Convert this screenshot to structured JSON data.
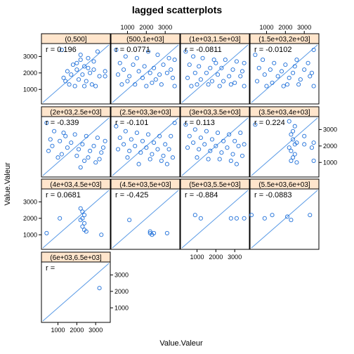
{
  "chart_data": {
    "type": "scatter",
    "title": "lagged scatterplots",
    "xlabel": "Value.Valeur",
    "ylabel": "Value.Valeur",
    "xlim": [
      200,
      3700
    ],
    "ylim": [
      200,
      3700
    ],
    "x_ticks": [
      1000,
      2000,
      3000
    ],
    "y_ticks": [
      1000,
      2000,
      3000
    ],
    "tick_labels": [
      "1000",
      "2000",
      "3000"
    ],
    "reference_line": "y = x",
    "colors": {
      "points": "#1e6fd9",
      "line": "#5b9be6",
      "strip": "#ffe5cc",
      "frame": "#000000"
    },
    "panels": [
      {
        "strip": "(0,500]",
        "r_label": "r = 0.196",
        "points": [
          [
            1200,
            3400
          ],
          [
            2200,
            3100
          ],
          [
            2600,
            2900
          ],
          [
            3100,
            3300
          ],
          [
            2900,
            2700
          ],
          [
            2400,
            2400
          ],
          [
            2000,
            2200
          ],
          [
            1500,
            2100
          ],
          [
            1800,
            2500
          ],
          [
            2300,
            1900
          ],
          [
            2700,
            2000
          ],
          [
            3200,
            1800
          ],
          [
            1300,
            1700
          ],
          [
            2100,
            1600
          ],
          [
            2500,
            1500
          ],
          [
            2800,
            1300
          ],
          [
            1600,
            1300
          ],
          [
            1900,
            1200
          ],
          [
            2400,
            1200
          ],
          [
            3000,
            1200
          ],
          [
            1400,
            1500
          ],
          [
            2000,
            2600
          ],
          [
            2900,
            2200
          ],
          [
            3500,
            2100
          ],
          [
            3500,
            1800
          ],
          [
            2200,
            2800
          ],
          [
            1700,
            1900
          ],
          [
            2600,
            2300
          ]
        ]
      },
      {
        "strip": "(500,1e+03]",
        "r_label": "r = 0.0771",
        "points": [
          [
            400,
            3400
          ],
          [
            900,
            3000
          ],
          [
            1500,
            2900
          ],
          [
            2100,
            3300
          ],
          [
            2600,
            3100
          ],
          [
            3200,
            2900
          ],
          [
            3500,
            2800
          ],
          [
            600,
            2600
          ],
          [
            1300,
            2500
          ],
          [
            1900,
            2400
          ],
          [
            2400,
            2300
          ],
          [
            2900,
            2500
          ],
          [
            3300,
            2200
          ],
          [
            800,
            2200
          ],
          [
            1600,
            2100
          ],
          [
            2200,
            2000
          ],
          [
            2700,
            1900
          ],
          [
            3100,
            2000
          ],
          [
            500,
            1900
          ],
          [
            1100,
            1800
          ],
          [
            1800,
            1700
          ],
          [
            2500,
            1600
          ],
          [
            3400,
            1700
          ],
          [
            700,
            1300
          ],
          [
            1400,
            1300
          ],
          [
            2000,
            1200
          ],
          [
            2800,
            1300
          ],
          [
            3500,
            1200
          ],
          [
            1000,
            1500
          ],
          [
            2300,
            1400
          ]
        ]
      },
      {
        "strip": "(1e+03,1.5e+03]",
        "r_label": "r = -0.0811",
        "points": [
          [
            400,
            3300
          ],
          [
            800,
            3000
          ],
          [
            1300,
            2900
          ],
          [
            1900,
            2800
          ],
          [
            2500,
            2800
          ],
          [
            3100,
            2700
          ],
          [
            3500,
            2600
          ],
          [
            600,
            2500
          ],
          [
            1100,
            2400
          ],
          [
            1700,
            2300
          ],
          [
            2300,
            2300
          ],
          [
            2900,
            2200
          ],
          [
            3400,
            2100
          ],
          [
            900,
            2000
          ],
          [
            1500,
            2000
          ],
          [
            2100,
            1900
          ],
          [
            2700,
            1800
          ],
          [
            3300,
            1800
          ],
          [
            500,
            1700
          ],
          [
            1200,
            1600
          ],
          [
            1800,
            1500
          ],
          [
            2400,
            1500
          ],
          [
            3000,
            1400
          ],
          [
            1000,
            1300
          ],
          [
            1600,
            1300
          ],
          [
            2200,
            1200
          ],
          [
            2800,
            1300
          ],
          [
            3500,
            1200
          ],
          [
            700,
            1200
          ],
          [
            2000,
            2600
          ]
        ]
      },
      {
        "strip": "(1.5e+03,2e+03]",
        "r_label": "r = -0.0102",
        "points": [
          [
            400,
            3100
          ],
          [
            800,
            2800
          ],
          [
            1400,
            2600
          ],
          [
            2000,
            2500
          ],
          [
            2600,
            2800
          ],
          [
            3200,
            2600
          ],
          [
            3500,
            3400
          ],
          [
            600,
            2300
          ],
          [
            1200,
            2200
          ],
          [
            1800,
            2100
          ],
          [
            2400,
            2000
          ],
          [
            3000,
            2200
          ],
          [
            3400,
            2000
          ],
          [
            900,
            1900
          ],
          [
            1600,
            1800
          ],
          [
            2200,
            1700
          ],
          [
            2800,
            1600
          ],
          [
            3300,
            1800
          ],
          [
            500,
            1500
          ],
          [
            1300,
            1400
          ],
          [
            2100,
            1300
          ],
          [
            2700,
            1300
          ],
          [
            3500,
            1200
          ],
          [
            1000,
            1200
          ],
          [
            1900,
            1200
          ],
          [
            2500,
            2400
          ]
        ]
      },
      {
        "strip": "(2e+03,2.5e+03]",
        "r_label": "r = -0.339",
        "points": [
          [
            400,
            3400
          ],
          [
            800,
            2900
          ],
          [
            1300,
            2800
          ],
          [
            1900,
            2700
          ],
          [
            2500,
            2600
          ],
          [
            3100,
            2500
          ],
          [
            3500,
            2300
          ],
          [
            600,
            2400
          ],
          [
            1100,
            2300
          ],
          [
            1700,
            2200
          ],
          [
            2300,
            2100
          ],
          [
            2900,
            2000
          ],
          [
            3400,
            1900
          ],
          [
            700,
            2000
          ],
          [
            1500,
            1900
          ],
          [
            2100,
            1800
          ],
          [
            2700,
            1700
          ],
          [
            3300,
            1600
          ],
          [
            500,
            1700
          ],
          [
            1200,
            1500
          ],
          [
            2000,
            1400
          ],
          [
            2600,
            1300
          ],
          [
            3200,
            1200
          ],
          [
            1000,
            1300
          ],
          [
            2400,
            1100
          ],
          [
            3000,
            1000
          ],
          [
            2200,
            700
          ],
          [
            1400,
            2600
          ]
        ]
      },
      {
        "strip": "(2.5e+03,3e+03]",
        "r_label": "r = -0.101",
        "points": [
          [
            400,
            3200
          ],
          [
            900,
            2900
          ],
          [
            1500,
            2800
          ],
          [
            2100,
            2700
          ],
          [
            2700,
            2600
          ],
          [
            3300,
            2600
          ],
          [
            3500,
            3400
          ],
          [
            600,
            2500
          ],
          [
            1200,
            2400
          ],
          [
            1800,
            2300
          ],
          [
            2400,
            2200
          ],
          [
            3000,
            2100
          ],
          [
            800,
            2100
          ],
          [
            1400,
            2000
          ],
          [
            2000,
            1900
          ],
          [
            2600,
            1800
          ],
          [
            3200,
            1800
          ],
          [
            500,
            1800
          ],
          [
            1100,
            1700
          ],
          [
            1700,
            1600
          ],
          [
            2300,
            1500
          ],
          [
            2900,
            1400
          ],
          [
            3400,
            1300
          ],
          [
            1000,
            1300
          ],
          [
            2200,
            1200
          ],
          [
            2800,
            1100
          ],
          [
            1600,
            900
          ],
          [
            3100,
            900
          ]
        ]
      },
      {
        "strip": "(3e+03,3.5e+03]",
        "r_label": "r = 0.113",
        "points": [
          [
            400,
            3300
          ],
          [
            900,
            3000
          ],
          [
            1500,
            2900
          ],
          [
            2100,
            2800
          ],
          [
            2700,
            2700
          ],
          [
            3300,
            2800
          ],
          [
            600,
            2600
          ],
          [
            1200,
            2500
          ],
          [
            1800,
            2400
          ],
          [
            2400,
            2300
          ],
          [
            3000,
            2300
          ],
          [
            3500,
            2100
          ],
          [
            800,
            2200
          ],
          [
            1400,
            2100
          ],
          [
            2000,
            2000
          ],
          [
            2600,
            1900
          ],
          [
            3200,
            2000
          ],
          [
            500,
            1900
          ],
          [
            1100,
            1800
          ],
          [
            1700,
            1700
          ],
          [
            2300,
            1600
          ],
          [
            2900,
            1500
          ],
          [
            3400,
            1400
          ],
          [
            1000,
            1300
          ],
          [
            1600,
            1200
          ],
          [
            2200,
            1200
          ],
          [
            2800,
            1100
          ],
          [
            3100,
            900
          ]
        ]
      },
      {
        "strip": "(3.5e+03,4e+03]",
        "r_label": "r = 0.224",
        "points": [
          [
            400,
            3300
          ],
          [
            2200,
            3500
          ],
          [
            2500,
            3200
          ],
          [
            2400,
            2900
          ],
          [
            2300,
            2700
          ],
          [
            3000,
            2600
          ],
          [
            2400,
            2400
          ],
          [
            2600,
            2200
          ],
          [
            2500,
            2100
          ],
          [
            3500,
            2200
          ],
          [
            3400,
            1900
          ],
          [
            2200,
            1900
          ],
          [
            2300,
            1700
          ],
          [
            2500,
            1500
          ],
          [
            2400,
            1300
          ],
          [
            2300,
            1100
          ],
          [
            2600,
            1000
          ],
          [
            3500,
            1100
          ],
          [
            3000,
            2100
          ]
        ]
      },
      {
        "strip": "(4e+03,4.5e+03]",
        "r_label": "r = 0.0681",
        "points": [
          [
            400,
            1100
          ],
          [
            1100,
            2000
          ],
          [
            2200,
            2600
          ],
          [
            2300,
            2400
          ],
          [
            2400,
            2200
          ],
          [
            2300,
            2000
          ],
          [
            2200,
            1900
          ],
          [
            2400,
            1700
          ],
          [
            2300,
            1500
          ],
          [
            2400,
            1300
          ],
          [
            2500,
            1200
          ],
          [
            3300,
            1000
          ]
        ]
      },
      {
        "strip": "(4.5e+03,5e+03]",
        "r_label": "r = -0.425",
        "points": [
          [
            1100,
            1900
          ],
          [
            2200,
            1100
          ],
          [
            2300,
            1000
          ],
          [
            2400,
            1100
          ],
          [
            2200,
            1200
          ],
          [
            3100,
            1100
          ]
        ]
      },
      {
        "strip": "(5e+03,5.5e+03]",
        "r_label": "r = -0.884",
        "points": [
          [
            900,
            2200
          ],
          [
            1200,
            2000
          ],
          [
            3100,
            2000
          ],
          [
            3500,
            2000
          ],
          [
            2800,
            2000
          ]
        ]
      },
      {
        "strip": "(5.5e+03,6e+03]",
        "r_label": "r = -0.0883",
        "points": [
          [
            200,
            2200
          ],
          [
            900,
            2000
          ],
          [
            1300,
            2200
          ],
          [
            2100,
            2100
          ],
          [
            2300,
            1900
          ],
          [
            3300,
            2200
          ]
        ]
      },
      {
        "strip": "(6e+03,6.5e+03]",
        "r_label": "r =",
        "points": [
          [
            3200,
            2200
          ]
        ]
      }
    ]
  }
}
